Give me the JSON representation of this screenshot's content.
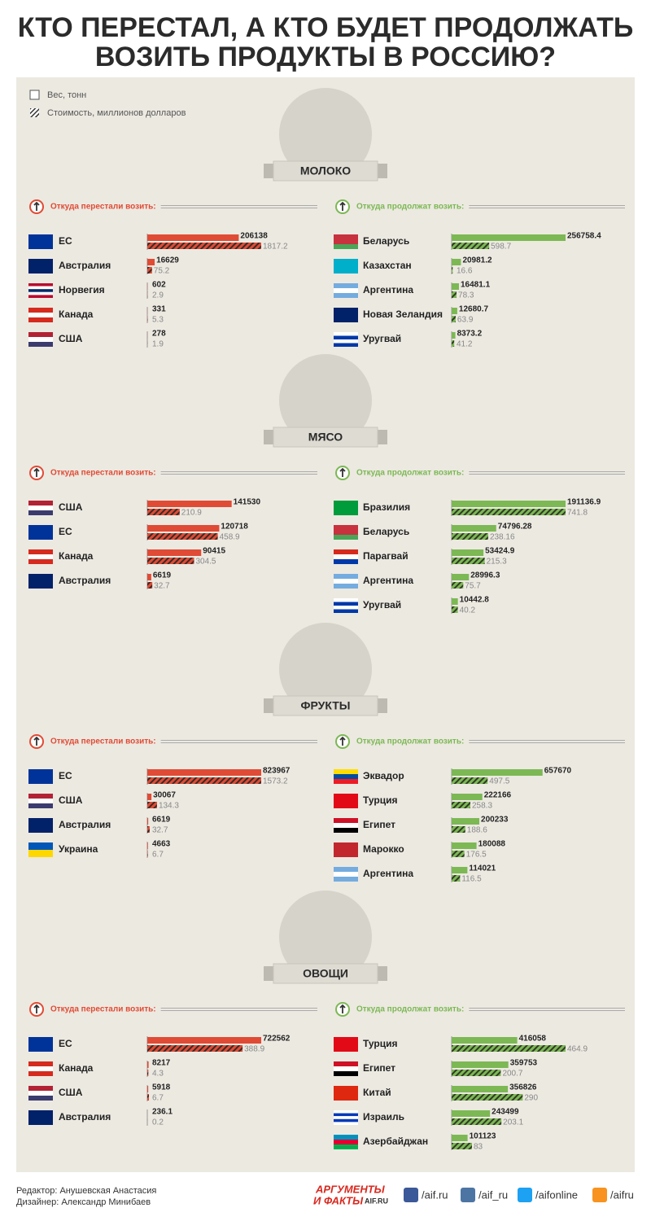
{
  "header": {
    "title": [
      "КТО ПЕРЕСТАЛ, А КТО БУДЕТ ПРОДОЛЖАТЬ",
      "ВОЗИТЬ ПРОДУКТЫ В РОССИЮ?"
    ]
  },
  "legend": [
    "Вес, тонн",
    "Стоимость, миллионов долларов"
  ],
  "chart_data": [
    {
      "type": "hbar-pair",
      "title": "МОЛОКО",
      "panels": [
        {
          "title": "Откуда перестали возить:",
          "color": "#e04b35",
          "categories": [
            "ЕС",
            "Австралия",
            "Норвегия",
            "Канада",
            "США"
          ],
          "weight": [
            206138,
            16629,
            602,
            331,
            278
          ],
          "cost": [
            1817.2,
            75.2,
            2.9,
            5.3,
            1.9
          ],
          "flags": [
            [
              "#003399"
            ],
            [
              "#012169"
            ],
            [
              "#ba0c2f",
              "#ffffff",
              "#002868",
              "#ffffff",
              "#ba0c2f"
            ],
            [
              "#d52b1e",
              "#ffffff",
              "#d52b1e"
            ],
            [
              "#b22234",
              "#ffffff",
              "#3c3b6e"
            ]
          ]
        },
        {
          "title": "Откуда продолжат возить:",
          "color": "#7cb854",
          "categories": [
            "Беларусь",
            "Казахстан",
            "Аргентина",
            "Новая Зеландия",
            "Уругвай"
          ],
          "weight": [
            256758.4,
            20981.2,
            16481.1,
            12680.7,
            8373.2
          ],
          "cost": [
            598.7,
            16.6,
            78.3,
            63.9,
            41.2
          ],
          "flags": [
            [
              "#c8313e",
              "#c8313e",
              "#4aa657"
            ],
            [
              "#00afca"
            ],
            [
              "#74acdf",
              "#ffffff",
              "#74acdf"
            ],
            [
              "#012169"
            ],
            [
              "#ffffff",
              "#0038a8",
              "#ffffff",
              "#0038a8"
            ]
          ]
        }
      ]
    },
    {
      "type": "hbar-pair",
      "title": "МЯСО",
      "panels": [
        {
          "title": "Откуда перестали возить:",
          "color": "#e04b35",
          "categories": [
            "США",
            "ЕС",
            "Канада",
            "Австралия"
          ],
          "weight": [
            141530,
            120718,
            90415,
            6619
          ],
          "cost": [
            210.9,
            458.9,
            304.5,
            32.7
          ],
          "flags": [
            [
              "#b22234",
              "#ffffff",
              "#3c3b6e"
            ],
            [
              "#003399"
            ],
            [
              "#d52b1e",
              "#ffffff",
              "#d52b1e"
            ],
            [
              "#012169"
            ]
          ]
        },
        {
          "title": "Откуда продолжат возить:",
          "color": "#7cb854",
          "categories": [
            "Бразилия",
            "Беларусь",
            "Парагвай",
            "Аргентина",
            "Уругвай"
          ],
          "weight": [
            191136.9,
            74796.28,
            53424.9,
            28996.3,
            10442.8
          ],
          "cost": [
            741.8,
            238.16,
            215.3,
            75.7,
            40.2
          ],
          "flags": [
            [
              "#009c3b"
            ],
            [
              "#c8313e",
              "#c8313e",
              "#4aa657"
            ],
            [
              "#d52b1e",
              "#ffffff",
              "#0038a8"
            ],
            [
              "#74acdf",
              "#ffffff",
              "#74acdf"
            ],
            [
              "#ffffff",
              "#0038a8",
              "#ffffff",
              "#0038a8"
            ]
          ]
        }
      ]
    },
    {
      "type": "hbar-pair",
      "title": "ФРУКТЫ",
      "panels": [
        {
          "title": "Откуда перестали возить:",
          "color": "#e04b35",
          "categories": [
            "ЕС",
            "США",
            "Австралия",
            "Украина"
          ],
          "weight": [
            823967,
            30067,
            6619,
            4663
          ],
          "cost": [
            1573.2,
            134.3,
            32.7,
            6.7
          ],
          "flags": [
            [
              "#003399"
            ],
            [
              "#b22234",
              "#ffffff",
              "#3c3b6e"
            ],
            [
              "#012169"
            ],
            [
              "#0057b7",
              "#ffd700"
            ]
          ]
        },
        {
          "title": "Откуда продолжат возить:",
          "color": "#7cb854",
          "categories": [
            "Эквадор",
            "Турция",
            "Египет",
            "Марокко",
            "Аргентина"
          ],
          "weight": [
            657670,
            222166,
            200233,
            180088,
            114021
          ],
          "cost": [
            497.5,
            258.3,
            188.6,
            176.5,
            116.5
          ],
          "flags": [
            [
              "#ffdd00",
              "#034ea2",
              "#ed1c24"
            ],
            [
              "#e30a17"
            ],
            [
              "#ce1126",
              "#ffffff",
              "#000000"
            ],
            [
              "#c1272d"
            ],
            [
              "#74acdf",
              "#ffffff",
              "#74acdf"
            ]
          ]
        }
      ]
    },
    {
      "type": "hbar-pair",
      "title": "ОВОЩИ",
      "panels": [
        {
          "title": "Откуда перестали возить:",
          "color": "#e04b35",
          "categories": [
            "ЕС",
            "Канада",
            "США",
            "Австралия"
          ],
          "weight": [
            722562,
            8217,
            5918,
            236.1
          ],
          "cost": [
            388.9,
            4.3,
            6.7,
            0.2
          ],
          "flags": [
            [
              "#003399"
            ],
            [
              "#d52b1e",
              "#ffffff",
              "#d52b1e"
            ],
            [
              "#b22234",
              "#ffffff",
              "#3c3b6e"
            ],
            [
              "#012169"
            ]
          ]
        },
        {
          "title": "Откуда продолжат возить:",
          "color": "#7cb854",
          "categories": [
            "Турция",
            "Египет",
            "Китай",
            "Израиль",
            "Азербайджан"
          ],
          "weight": [
            416058,
            359753,
            356826,
            243499,
            101123
          ],
          "cost": [
            464.9,
            200.7,
            290,
            203.1,
            83
          ],
          "flags": [
            [
              "#e30a17"
            ],
            [
              "#ce1126",
              "#ffffff",
              "#000000"
            ],
            [
              "#de2910"
            ],
            [
              "#ffffff",
              "#0038b8",
              "#ffffff",
              "#0038b8",
              "#ffffff"
            ],
            [
              "#0092bc",
              "#e00034",
              "#00b050"
            ]
          ]
        }
      ]
    }
  ],
  "footer": {
    "credits": [
      "Редактор: Анушевская Анастасия",
      "Дизайнер: Александр Минибаев"
    ],
    "logo": [
      "АРГУМЕНТЫ",
      "И ФАКТЫ",
      "AIF.RU"
    ],
    "social": [
      "/aif.ru",
      "/aif_ru",
      "/aifonline",
      "/aifru"
    ]
  }
}
